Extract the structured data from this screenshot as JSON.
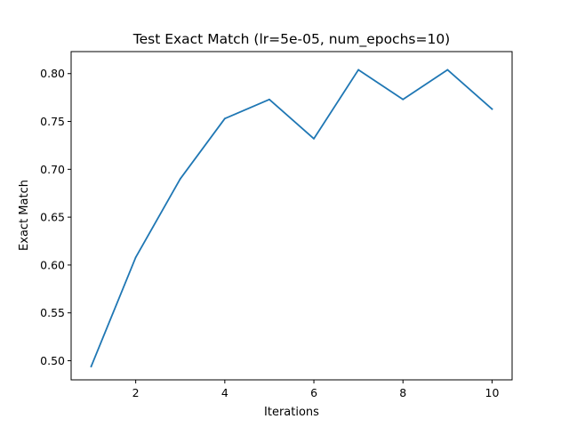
{
  "chart_data": {
    "type": "line",
    "title": "Test Exact Match (lr=5e-05, num_epochs=10)",
    "xlabel": "Iterations",
    "ylabel": "Exact Match",
    "xlim": [
      0.55,
      10.45
    ],
    "ylim": [
      0.48,
      0.823
    ],
    "xticks": [
      2,
      4,
      6,
      8,
      10
    ],
    "yticks": [
      0.5,
      0.55,
      0.6,
      0.65,
      0.7,
      0.75,
      0.8
    ],
    "ytick_labels": [
      "0.50",
      "0.55",
      "0.60",
      "0.65",
      "0.70",
      "0.75",
      "0.80"
    ],
    "grid": false,
    "series": [
      {
        "color": "#1f77b4",
        "x": [
          1,
          2,
          3,
          4,
          5,
          6,
          7,
          8,
          9,
          10
        ],
        "y": [
          0.494,
          0.608,
          0.69,
          0.753,
          0.773,
          0.732,
          0.804,
          0.773,
          0.804,
          0.763
        ]
      }
    ]
  }
}
